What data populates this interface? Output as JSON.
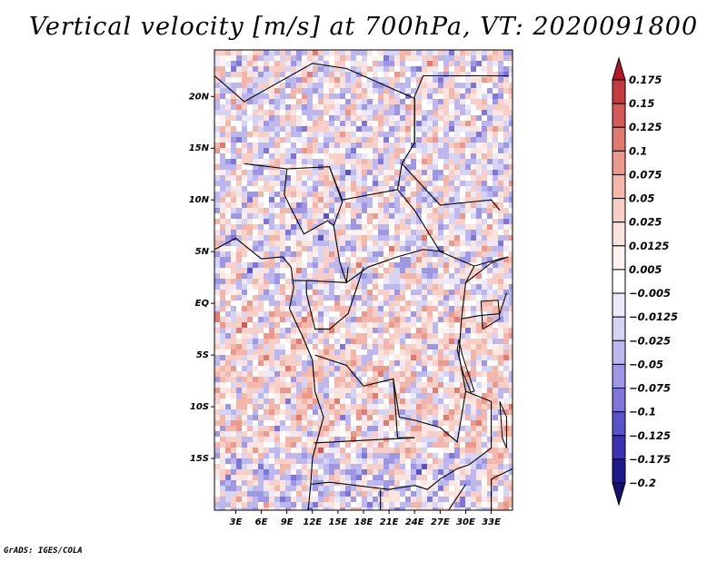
{
  "title": "Vertical velocity [m/s] at 700hPa, VT: 2020091800",
  "credit": "GrADS: IGES/COLA",
  "map": {
    "lat_labels": [
      "20N",
      "15N",
      "10N",
      "5N",
      "EQ",
      "5S",
      "10S",
      "15S"
    ],
    "lon_labels": [
      "3E",
      "6E",
      "9E",
      "12E",
      "15E",
      "18E",
      "21E",
      "24E",
      "27E",
      "30E",
      "33E"
    ]
  },
  "colorbar": {
    "levels": [
      "0.175",
      "0.15",
      "0.125",
      "0.1",
      "0.075",
      "0.05",
      "0.025",
      "0.0125",
      "0.005",
      "−0.005",
      "−0.0125",
      "−0.025",
      "−0.05",
      "−0.075",
      "−0.1",
      "−0.125",
      "−0.175",
      "−0.2"
    ],
    "colors": [
      "#b2182b",
      "#c33a3f",
      "#d35a56",
      "#e07b70",
      "#ea9a8d",
      "#f2b6aa",
      "#f8cfc6",
      "#fce4de",
      "#fef2ef",
      "#ffffff",
      "#eceafa",
      "#d6d4f5",
      "#bcb8ee",
      "#9e98e4",
      "#7d76d8",
      "#5a52c8",
      "#3a32b0",
      "#1f1a8c",
      "#14106e"
    ]
  },
  "chart_data": {
    "type": "heatmap",
    "variable": "Vertical velocity",
    "units": "m/s",
    "level": "700hPa",
    "valid_time": "2020091800",
    "lon_range": [
      0.5,
      35.5
    ],
    "lat_range": [
      -20,
      24.5
    ],
    "contour_levels": [
      -0.2,
      -0.175,
      -0.125,
      -0.1,
      -0.075,
      -0.05,
      -0.025,
      -0.0125,
      -0.005,
      0.005,
      0.0125,
      0.025,
      0.05,
      0.075,
      0.1,
      0.125,
      0.15,
      0.175
    ]
  }
}
